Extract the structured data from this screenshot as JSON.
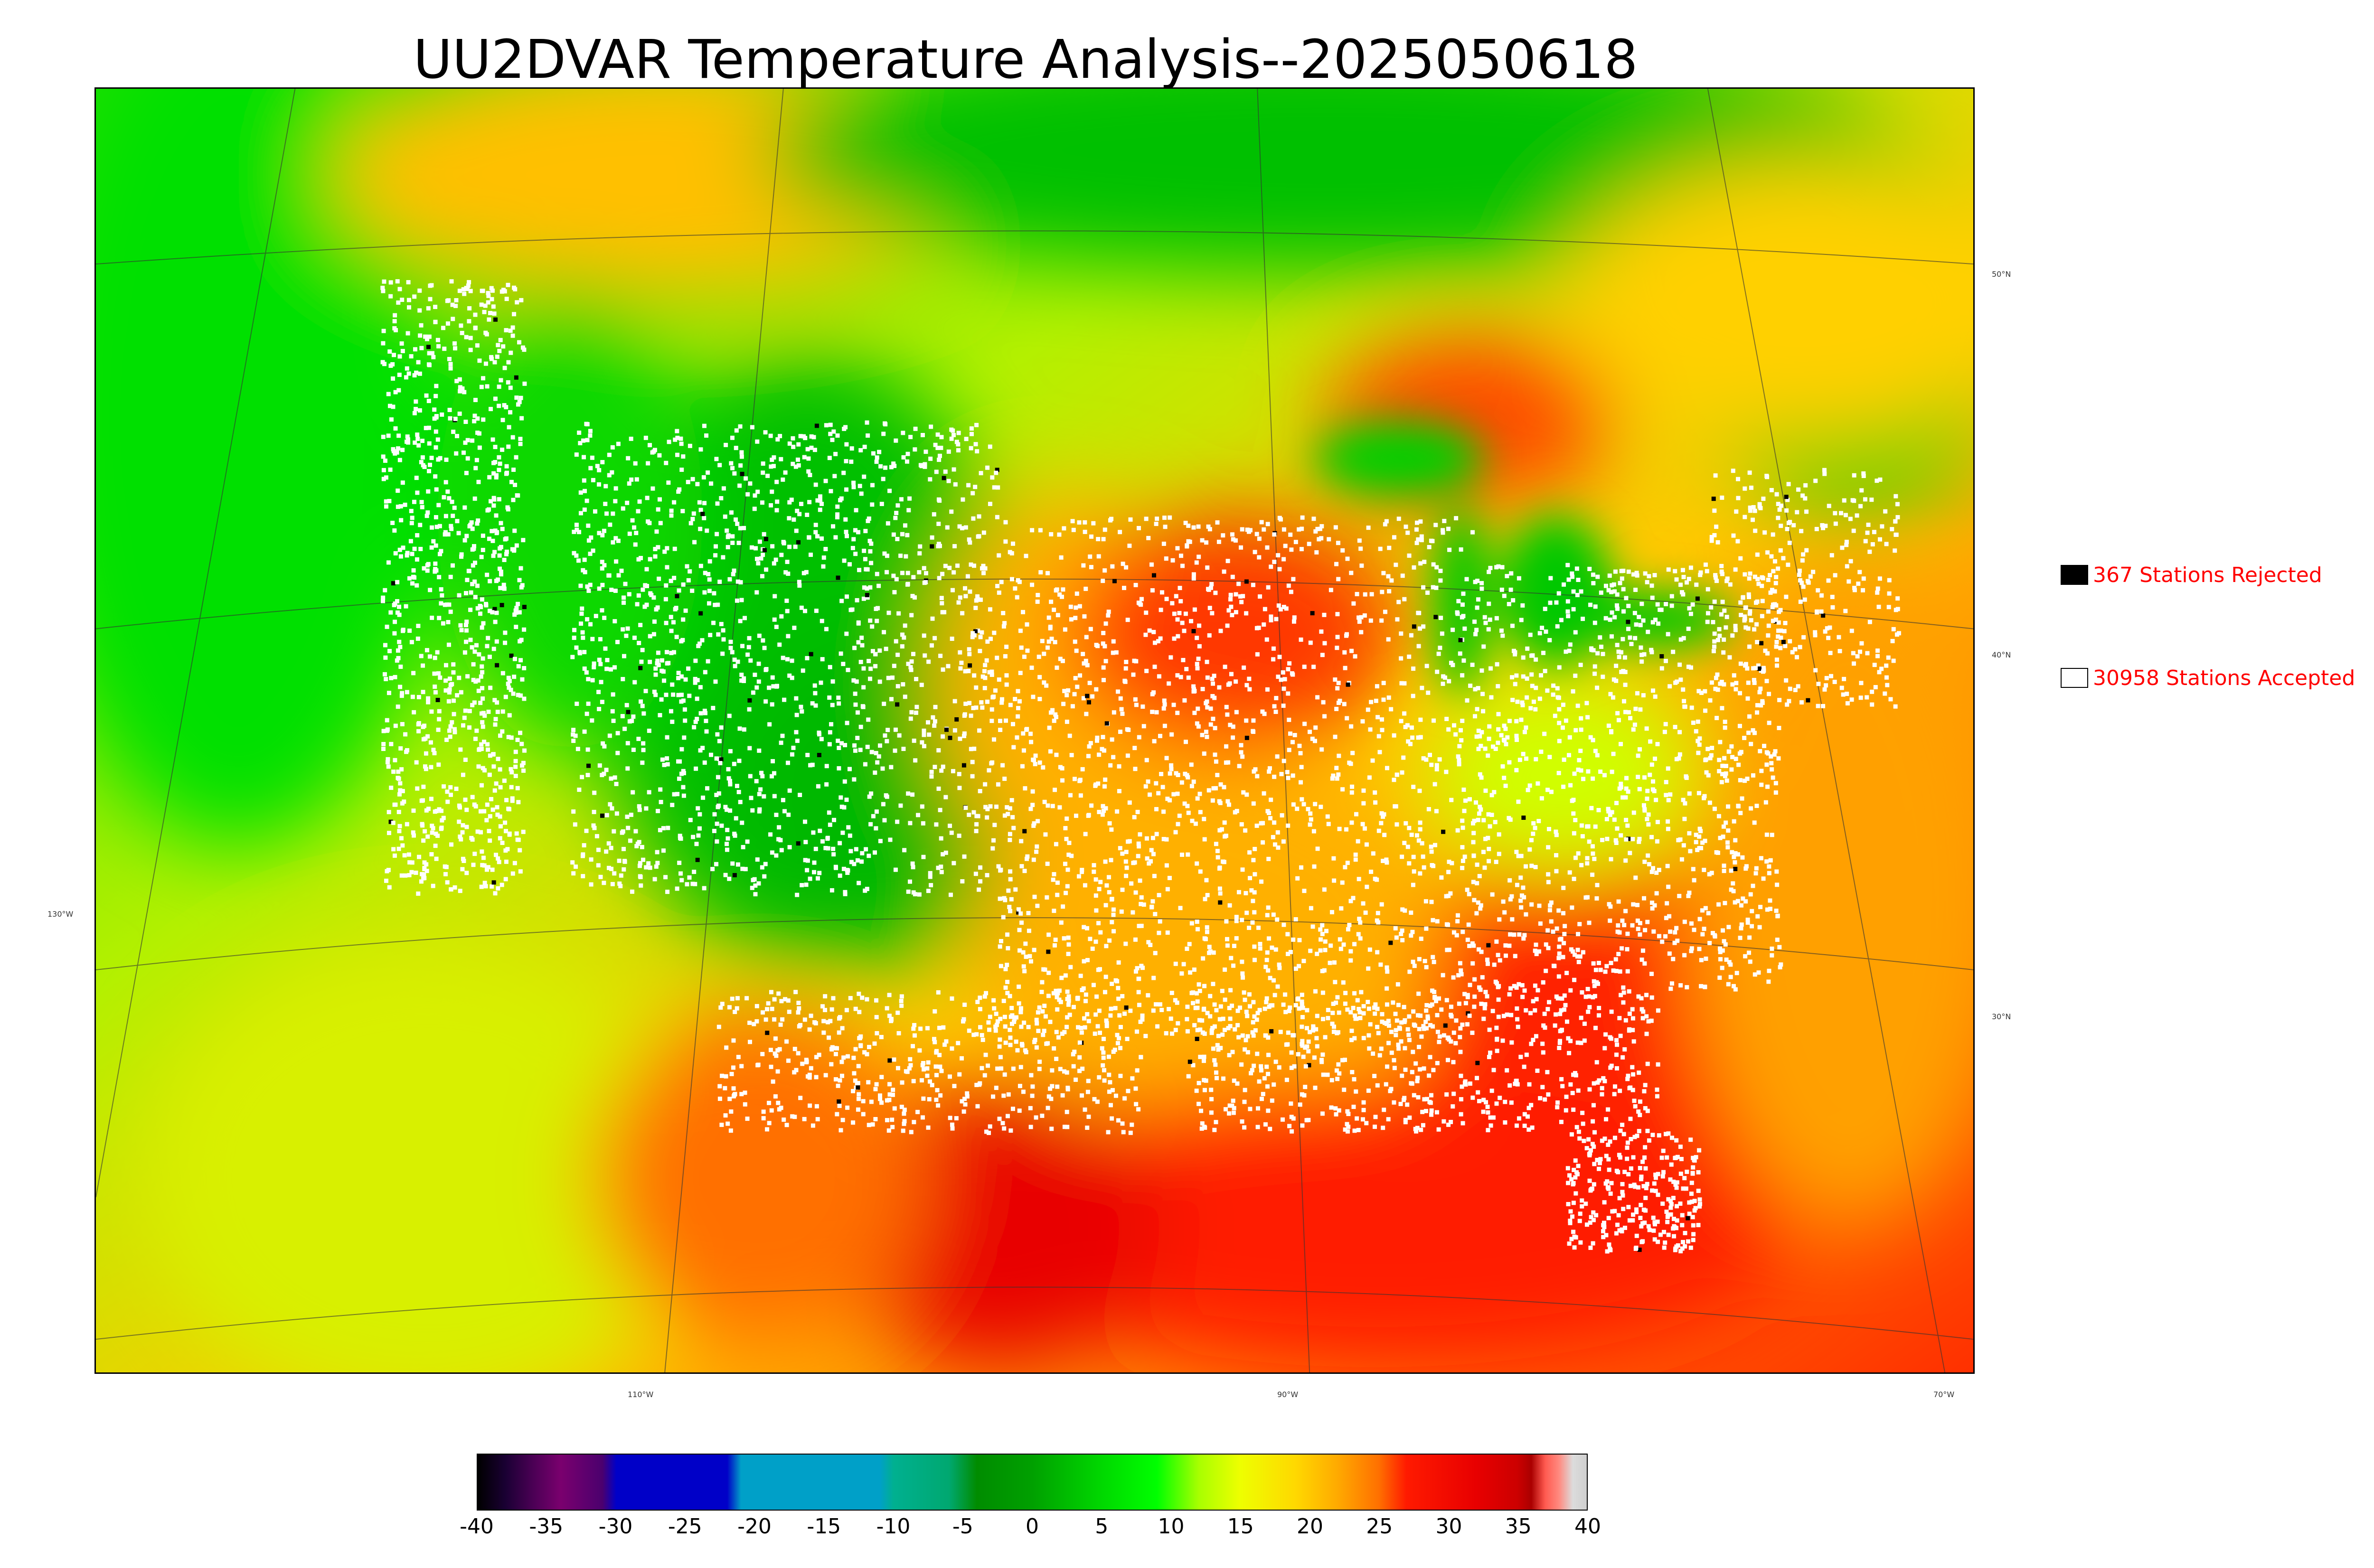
{
  "title": "UU2DVAR Temperature Analysis--2025050618",
  "legend": {
    "rejected": {
      "label": "367 Stations Rejected",
      "swatch_color": "#000000"
    },
    "accepted": {
      "label": "30958 Stations Accepted",
      "swatch_color": "#ffffff"
    }
  },
  "graticule": {
    "latitudes": [
      "50°N",
      "40°N",
      "30°N"
    ],
    "longitudes": [
      "130°W",
      "110°W",
      "90°W",
      "70°W"
    ]
  },
  "colorbar": {
    "ticks": [
      "-40",
      "-35",
      "-30",
      "-25",
      "-20",
      "-15",
      "-10",
      "-5",
      "0",
      "5",
      "10",
      "15",
      "20",
      "25",
      "30",
      "35",
      "40"
    ],
    "range": [
      -40,
      40
    ],
    "stops": [
      {
        "value": -40,
        "color": "#000000"
      },
      {
        "value": -38,
        "color": "#1a0033"
      },
      {
        "value": -36,
        "color": "#4b0055"
      },
      {
        "value": -34,
        "color": "#7a006e"
      },
      {
        "value": -31,
        "color": "#4b006e"
      },
      {
        "value": -30,
        "color": "#0000c8"
      },
      {
        "value": -22,
        "color": "#0000c8"
      },
      {
        "value": -21,
        "color": "#00a0c8"
      },
      {
        "value": -11,
        "color": "#00a0c8"
      },
      {
        "value": -10,
        "color": "#00b090"
      },
      {
        "value": -6,
        "color": "#00a870"
      },
      {
        "value": -4,
        "color": "#008c00"
      },
      {
        "value": 0,
        "color": "#00a000"
      },
      {
        "value": 5,
        "color": "#00d800"
      },
      {
        "value": 9,
        "color": "#00ff00"
      },
      {
        "value": 12,
        "color": "#a8ff00"
      },
      {
        "value": 15,
        "color": "#eeff00"
      },
      {
        "value": 19,
        "color": "#ffd800"
      },
      {
        "value": 22,
        "color": "#ffaa00"
      },
      {
        "value": 25,
        "color": "#ff7000"
      },
      {
        "value": 27,
        "color": "#ff1a00"
      },
      {
        "value": 32,
        "color": "#e80000"
      },
      {
        "value": 35,
        "color": "#cc0000"
      },
      {
        "value": 36,
        "color": "#aa0000"
      },
      {
        "value": 37,
        "color": "#ff5a50"
      },
      {
        "value": 38,
        "color": "#ff8a80"
      },
      {
        "value": 39,
        "color": "#dcdcdc"
      },
      {
        "value": 40,
        "color": "#cfcfcf"
      }
    ]
  },
  "colors": {
    "ocean_west": "#88e800",
    "ocean_gulf": "#ff2200",
    "cool_region": "#00c800",
    "warm_region": "#ffb000",
    "hot_region": "#ff2a00",
    "station_accepted": "#ffffff",
    "station_rejected": "#000000"
  }
}
